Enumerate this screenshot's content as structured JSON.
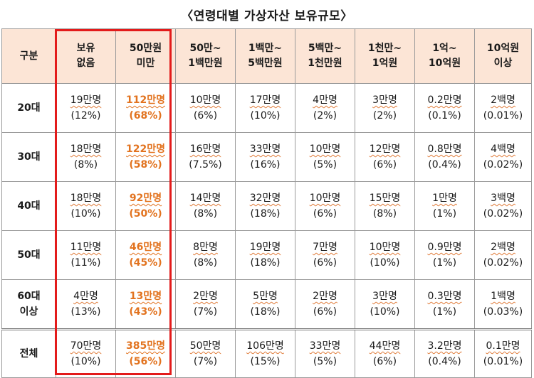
{
  "title": "〈연령대별 가상자산 보유규모〉",
  "headers": [
    [
      "구분"
    ],
    [
      "보유",
      "없음"
    ],
    [
      "50만원",
      "미만"
    ],
    [
      "50만~",
      "1백만원"
    ],
    [
      "1백만~",
      "5백만원"
    ],
    [
      "5백만~",
      "1천만원"
    ],
    [
      "1천만~",
      "1억원"
    ],
    [
      "1억~",
      "10억원"
    ],
    [
      "10억원",
      "이상"
    ]
  ],
  "rows": [
    {
      "label": [
        "20대"
      ],
      "cells": [
        [
          "19만명",
          "(12%)"
        ],
        [
          "112만명",
          "(68%)"
        ],
        [
          "10만명",
          "(6%)"
        ],
        [
          "17만명",
          "(10%)"
        ],
        [
          "4만명",
          "(2%)"
        ],
        [
          "3만명",
          "(2%)"
        ],
        [
          "0.2만명",
          "(0.1%)"
        ],
        [
          "2백명",
          "(0.01%)"
        ]
      ]
    },
    {
      "label": [
        "30대"
      ],
      "cells": [
        [
          "18만명",
          "(8%)"
        ],
        [
          "122만명",
          "(58%)"
        ],
        [
          "16만명",
          "(7.5%)"
        ],
        [
          "33만명",
          "(16%)"
        ],
        [
          "10만명",
          "(5%)"
        ],
        [
          "12만명",
          "(6%)"
        ],
        [
          "0.8만명",
          "(0.4%)"
        ],
        [
          "4백명",
          "(0.02%)"
        ]
      ]
    },
    {
      "label": [
        "40대"
      ],
      "cells": [
        [
          "18만명",
          "(10%)"
        ],
        [
          "92만명",
          "(50%)"
        ],
        [
          "14만명",
          "(8%)"
        ],
        [
          "32만명",
          "(18%)"
        ],
        [
          "10만명",
          "(6%)"
        ],
        [
          "15만명",
          "(8%)"
        ],
        [
          "1만명",
          "(1%)"
        ],
        [
          "3백명",
          "(0.02%)"
        ]
      ]
    },
    {
      "label": [
        "50대"
      ],
      "cells": [
        [
          "11만명",
          "(11%)"
        ],
        [
          "46만명",
          "(45%)"
        ],
        [
          "8만명",
          "(8%)"
        ],
        [
          "19만명",
          "(18%)"
        ],
        [
          "7만명",
          "(6%)"
        ],
        [
          "10만명",
          "(10%)"
        ],
        [
          "0.9만명",
          "(1%)"
        ],
        [
          "2백명",
          "(0.02%)"
        ]
      ]
    },
    {
      "label": [
        "60대",
        "이상"
      ],
      "cells": [
        [
          "4만명",
          "(13%)"
        ],
        [
          "13만명",
          "(43%)"
        ],
        [
          "2만명",
          "(7%)"
        ],
        [
          "5만명",
          "(18%)"
        ],
        [
          "2만명",
          "(6%)"
        ],
        [
          "3만명",
          "(10%)"
        ],
        [
          "0.3만명",
          "(1%)"
        ],
        [
          "1백명",
          "(0.03%)"
        ]
      ]
    },
    {
      "label": [
        "전체"
      ],
      "cells": [
        [
          "70만명",
          "(10%)"
        ],
        [
          "385만명",
          "(56%)"
        ],
        [
          "50만명",
          "(7%)"
        ],
        [
          "106만명",
          "(15%)"
        ],
        [
          "33만명",
          "(5%)"
        ],
        [
          "44만명",
          "(6%)"
        ],
        [
          "3.2만명",
          "(0.4%)"
        ],
        [
          "0.1만명",
          "(0.01%)"
        ]
      ]
    }
  ],
  "highlight_column_index": 1,
  "colors": {
    "header_bg": "#fce5d6",
    "highlight_text": "#e2731f",
    "highlight_border": "#e31b1b"
  }
}
